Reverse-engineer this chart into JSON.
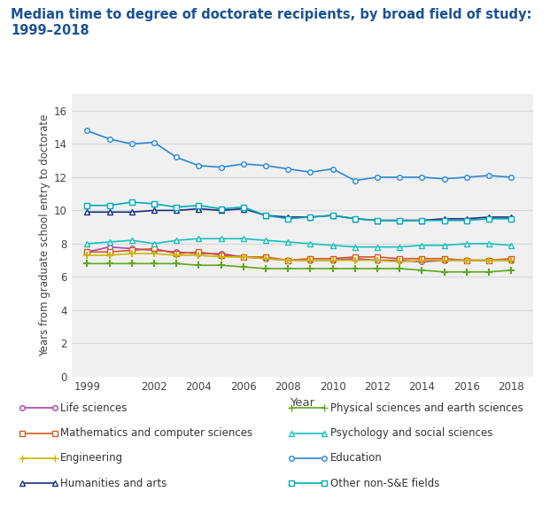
{
  "title_line1": "Median time to degree of doctorate recipients, by broad field of study:",
  "title_line2": "1999–2018",
  "xlabel": "Year",
  "ylabel": "Years from graduate school entry to doctorate",
  "years": [
    1999,
    2000,
    2001,
    2002,
    2003,
    2004,
    2005,
    2006,
    2007,
    2008,
    2009,
    2010,
    2011,
    2012,
    2013,
    2014,
    2015,
    2016,
    2017,
    2018
  ],
  "series": [
    {
      "name": "Life sciences",
      "color": "#b040b0",
      "marker": "o",
      "values": [
        7.5,
        7.8,
        7.7,
        7.6,
        7.5,
        7.4,
        7.4,
        7.2,
        7.1,
        7.0,
        7.0,
        7.0,
        7.1,
        7.0,
        7.0,
        6.9,
        7.0,
        7.0,
        7.0,
        7.0
      ]
    },
    {
      "name": "Physical sciences and earth sciences",
      "color": "#60a820",
      "marker": "+",
      "values": [
        6.8,
        6.8,
        6.8,
        6.8,
        6.8,
        6.7,
        6.7,
        6.6,
        6.5,
        6.5,
        6.5,
        6.5,
        6.5,
        6.5,
        6.5,
        6.4,
        6.3,
        6.3,
        6.3,
        6.4
      ]
    },
    {
      "name": "Mathematics and computer sciences",
      "color": "#d85820",
      "marker": "s",
      "values": [
        7.5,
        7.5,
        7.6,
        7.7,
        7.4,
        7.5,
        7.3,
        7.2,
        7.2,
        7.0,
        7.1,
        7.1,
        7.2,
        7.2,
        7.1,
        7.1,
        7.1,
        7.0,
        7.0,
        7.1
      ]
    },
    {
      "name": "Psychology and social sciences",
      "color": "#18c0c0",
      "marker": "^",
      "values": [
        8.0,
        8.1,
        8.2,
        8.0,
        8.2,
        8.3,
        8.3,
        8.3,
        8.2,
        8.1,
        8.0,
        7.9,
        7.8,
        7.8,
        7.8,
        7.9,
        7.9,
        8.0,
        8.0,
        7.9
      ]
    },
    {
      "name": "Engineering",
      "color": "#c8b800",
      "marker": "+",
      "values": [
        7.3,
        7.3,
        7.4,
        7.4,
        7.3,
        7.3,
        7.2,
        7.2,
        7.1,
        7.0,
        7.0,
        7.0,
        7.0,
        7.0,
        6.9,
        7.0,
        7.0,
        7.0,
        7.0,
        7.0
      ]
    },
    {
      "name": "Education",
      "color": "#2888d8",
      "marker": "o",
      "values": [
        14.8,
        14.3,
        14.0,
        14.1,
        13.2,
        12.7,
        12.6,
        12.8,
        12.7,
        12.5,
        12.3,
        12.5,
        11.8,
        12.0,
        12.0,
        12.0,
        11.9,
        12.0,
        12.1,
        12.0
      ]
    },
    {
      "name": "Humanities and arts",
      "color": "#1a2f80",
      "marker": "^",
      "values": [
        9.9,
        9.9,
        9.9,
        10.0,
        10.0,
        10.1,
        10.0,
        10.1,
        9.7,
        9.6,
        9.6,
        9.7,
        9.5,
        9.4,
        9.4,
        9.4,
        9.5,
        9.5,
        9.6,
        9.6
      ]
    },
    {
      "name": "Other non-S&E fields",
      "color": "#00aab8",
      "marker": "s",
      "values": [
        10.3,
        10.3,
        10.5,
        10.4,
        10.2,
        10.3,
        10.1,
        10.2,
        9.7,
        9.5,
        9.6,
        9.7,
        9.5,
        9.4,
        9.4,
        9.4,
        9.4,
        9.4,
        9.5,
        9.5
      ]
    }
  ],
  "ylim": [
    0,
    17
  ],
  "yticks": [
    0,
    2,
    4,
    6,
    8,
    10,
    12,
    14,
    16
  ],
  "xticks": [
    1999,
    2002,
    2004,
    2006,
    2008,
    2010,
    2012,
    2014,
    2016,
    2018
  ],
  "bg_color": "#ffffff",
  "plot_bg_color": "#f0f0f0",
  "grid_color": "#d8d8d8",
  "legend_col1": [
    "Life sciences",
    "Mathematics and computer sciences",
    "Engineering",
    "Humanities and arts"
  ],
  "legend_col2": [
    "Physical sciences and earth sciences",
    "Psychology and social sciences",
    "Education",
    "Other non-S&E fields"
  ]
}
